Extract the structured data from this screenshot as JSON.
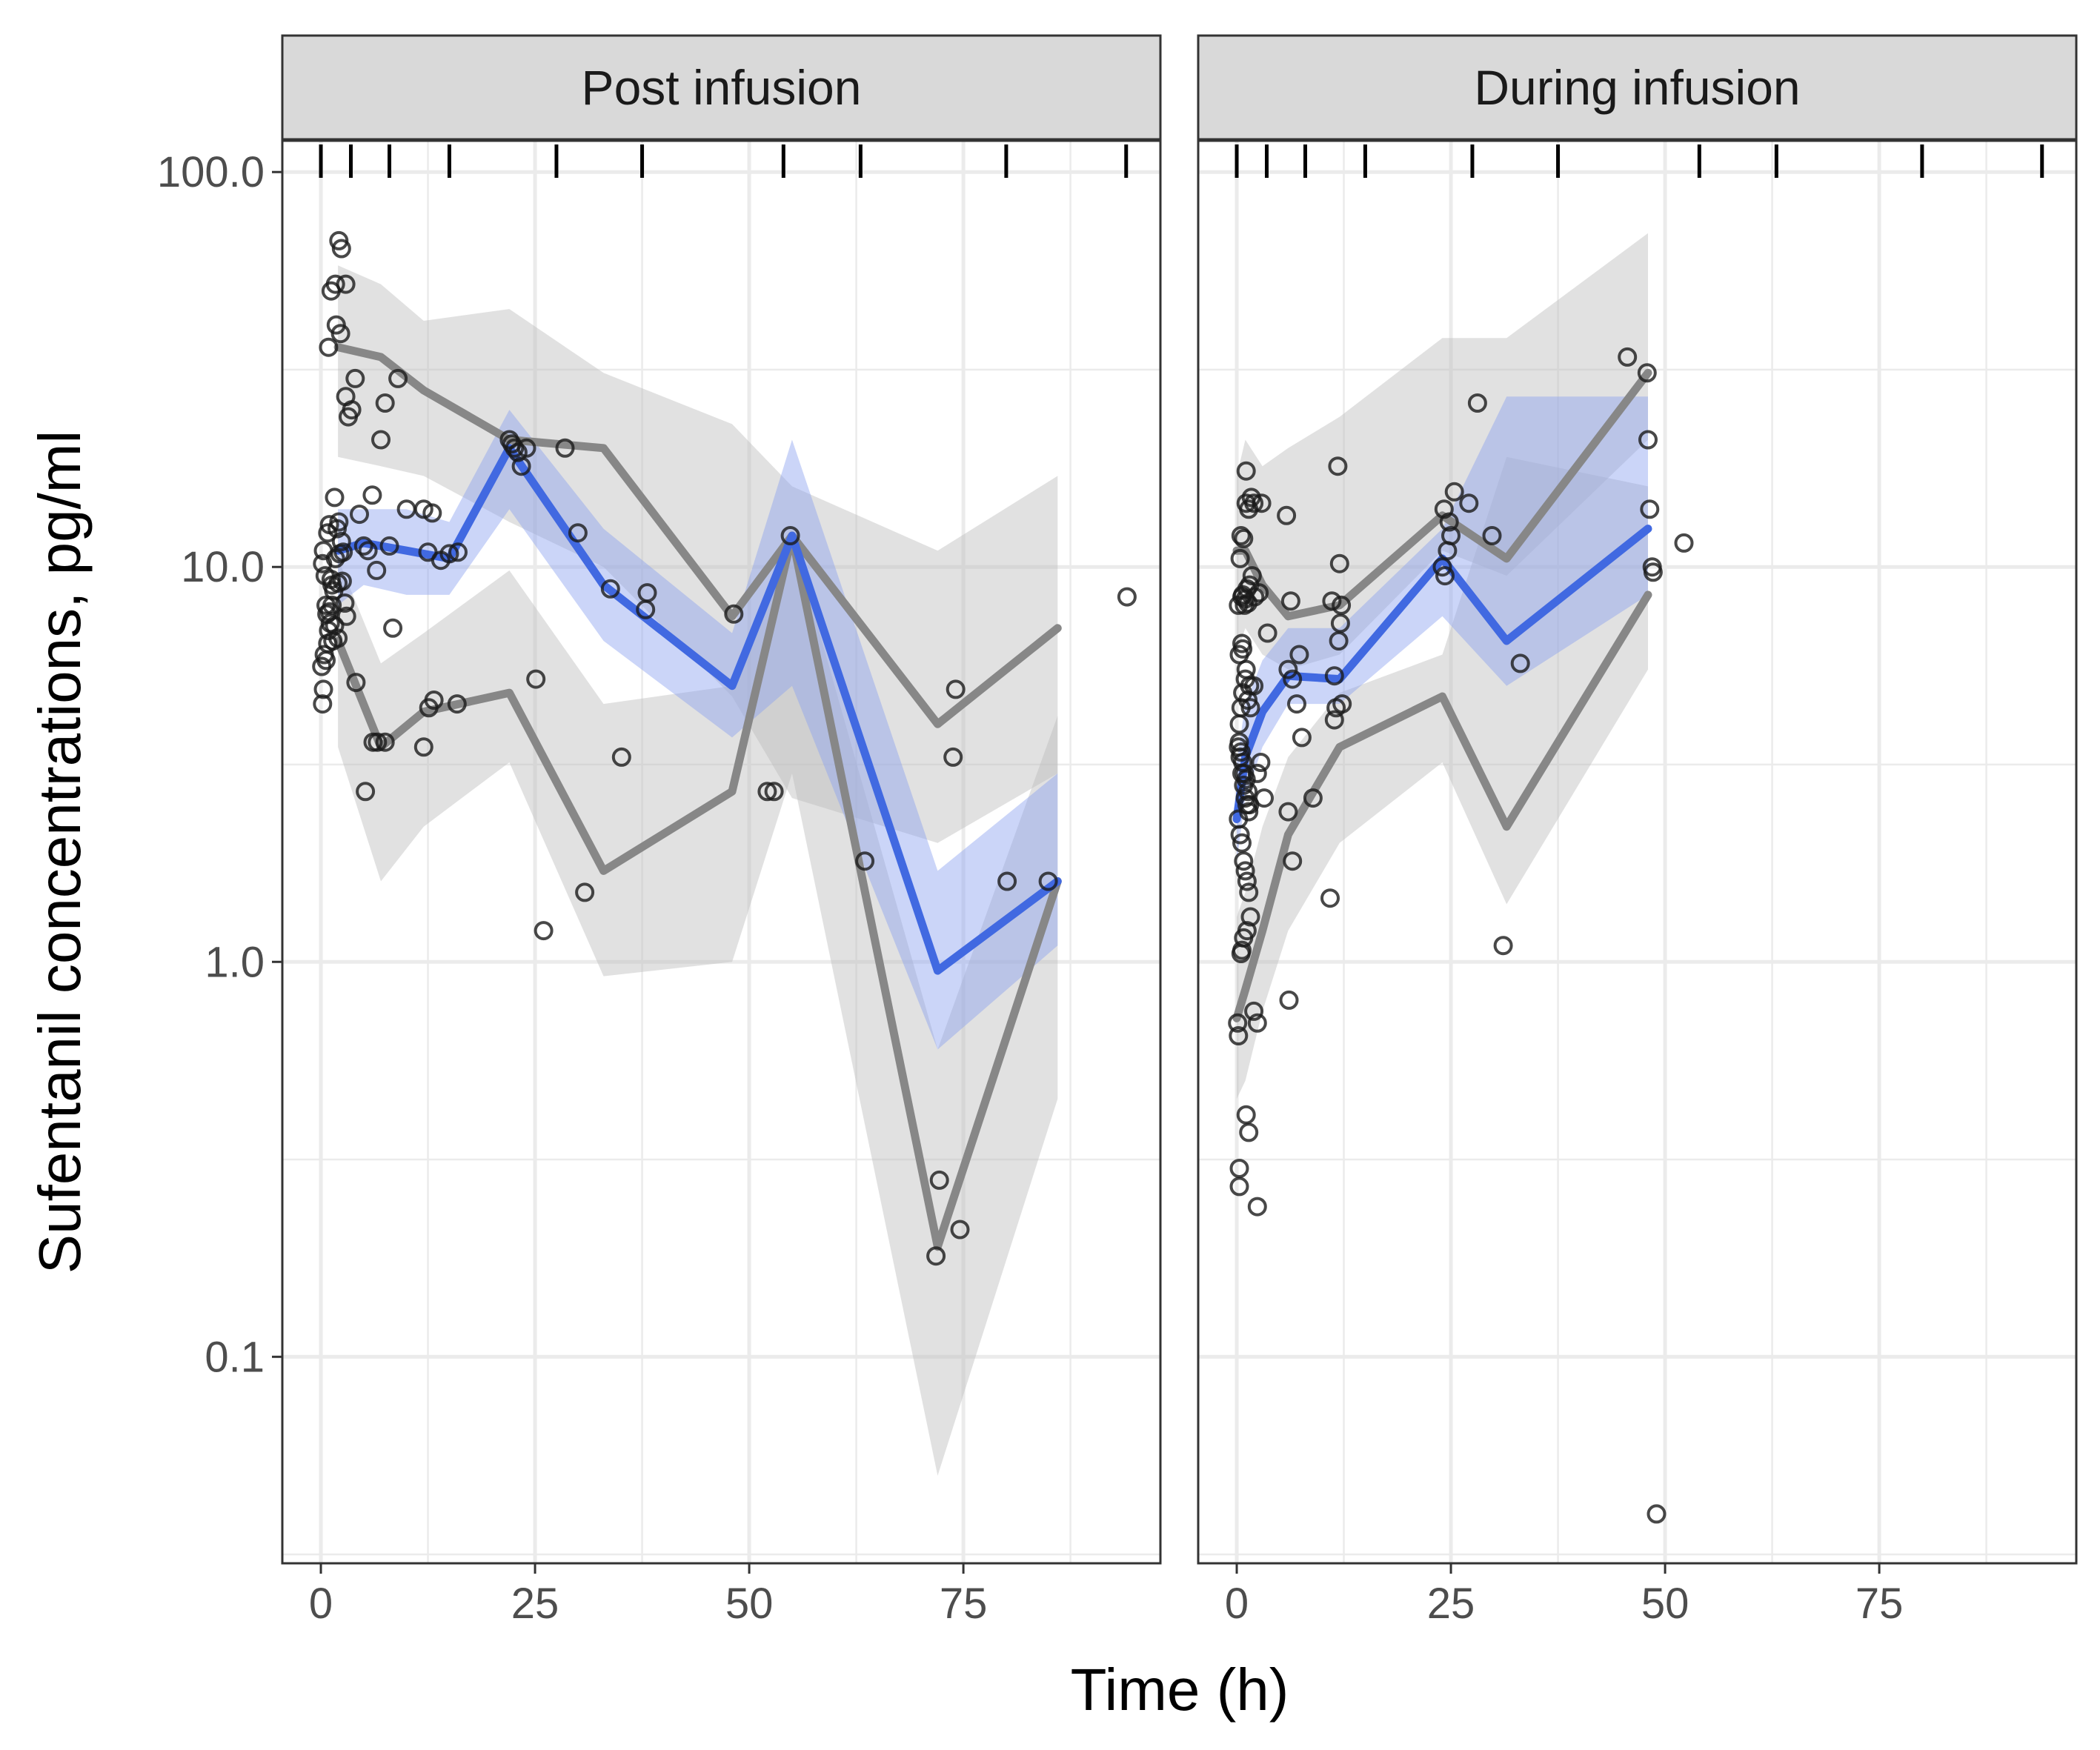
{
  "chart_data": {
    "type": "line",
    "xlabel": "Time (h)",
    "ylabel": "Sufentanil concentrations, pg/ml",
    "x_ticks": [
      "0",
      "25",
      "50",
      "75"
    ],
    "x_tick_values": [
      0,
      25,
      50,
      75
    ],
    "y_ticks": [
      "0.1",
      "1.0",
      "10.0",
      "100.0"
    ],
    "y_tick_values": [
      0.1,
      1,
      10,
      100
    ],
    "y_scale": "log10",
    "xlim": [
      -4.5,
      98
    ],
    "ylim": [
      0.03,
      120
    ],
    "grid": true,
    "rug_bins": [
      0,
      3.5,
      8,
      15,
      27.5,
      37.5,
      54,
      63,
      80,
      94
    ],
    "colors": {
      "median": "#4169E1",
      "ci_outer": "#bdbdbd",
      "ci_median": "#8ca2f0",
      "percentile_lines": "#878787",
      "points": "#1a1a1a",
      "strip_bg": "#d9d9d9",
      "grid": "#ebebeb"
    },
    "panels": [
      {
        "title": "Post infusion",
        "observed": {
          "x": [
            0.2,
            0.3,
            0.5,
            0.6,
            0.8,
            1.0,
            1.1,
            1.3,
            1.5,
            1.7,
            2.0,
            2.2,
            2.5,
            2.8,
            3.0,
            0.4,
            0.7,
            0.9,
            1.2,
            1.4,
            1.6,
            1.9,
            2.1,
            2.4,
            2.6,
            2.9,
            3.2,
            3.6,
            4.0,
            4.5,
            5.0,
            5.5,
            6.0,
            6.5,
            7.0,
            7.5,
            8.0,
            9.0,
            10.0,
            12.0,
            12.5,
            13.0,
            14.0,
            15.0,
            16.0,
            0.1,
            0.2,
            0.3,
            0.6,
            0.8,
            1.0,
            1.3,
            1.6,
            2.0,
            4.1,
            5.2,
            6.1,
            6.6,
            7.5,
            8.4,
            12.0,
            12.6,
            13.2,
            15.9,
            22.0,
            22.3,
            22.6,
            23.0,
            23.4,
            24.0,
            25.1,
            26.0,
            28.5,
            30.0,
            30.8,
            33.8,
            35.1,
            37.9,
            38.1,
            48.2,
            52.1,
            52.9,
            54.8,
            63.5,
            71.8,
            72.2,
            73.8,
            74.1,
            74.6,
            80.1,
            84.9,
            94.1,
            2.1,
            2.4,
            1.7,
            2.9,
            1.2,
            1.8,
            2.3,
            0.9
          ],
          "y": [
            10.2,
            11.0,
            9.5,
            8.0,
            12.2,
            12.8,
            7.2,
            9.0,
            8.7,
            10.5,
            9.1,
            10.8,
            9.2,
            8.1,
            7.5,
            6.0,
            7.6,
            6.9,
            9.3,
            6.5,
            15.0,
            12.5,
            13.0,
            11.6,
            10.9,
            27.0,
            24.0,
            25.0,
            30.0,
            13.6,
            11.3,
            11.0,
            15.2,
            9.8,
            21.0,
            26.0,
            11.3,
            30.0,
            14.0,
            14.0,
            10.9,
            13.7,
            10.4,
            10.8,
            10.9,
            5.6,
            4.5,
            4.9,
            5.8,
            6.4,
            7.7,
            8.0,
            7.1,
            6.6,
            5.1,
            2.7,
            3.6,
            3.6,
            3.6,
            7.0,
            3.5,
            4.4,
            4.6,
            4.5,
            21.0,
            20.5,
            20.0,
            19.5,
            18.0,
            20.0,
            5.2,
            1.2,
            20.0,
            12.2,
            1.5,
            8.8,
            3.3,
            7.8,
            8.6,
            7.6,
            2.7,
            2.7,
            12.0,
            1.8,
            0.18,
            0.28,
            3.3,
            4.9,
            0.21,
            1.6,
            1.6,
            8.4,
            67.0,
            64.0,
            52.0,
            52.0,
            50.0,
            41.0,
            39.0,
            36.0
          ],
          "median": {
            "x": [
              2,
              5,
              10,
              15,
              22,
              33,
              48,
              55,
              72,
              86
            ],
            "y": [
              11,
              11.5,
              11,
              10.5,
              20,
              9,
              5,
              12,
              0.95,
              1.6
            ]
          },
          "p5": {
            "x": [
              2,
              7,
              12,
              22,
              33,
              48,
              55,
              72,
              86
            ],
            "y": [
              6.5,
              3.5,
              4.3,
              4.8,
              1.7,
              2.7,
              12,
              0.19,
              1.6
            ]
          },
          "p95": {
            "x": [
              2,
              7,
              12,
              22,
              33,
              48,
              55,
              72,
              86
            ],
            "y": [
              36,
              34,
              28,
              21,
              20,
              7.5,
              12,
              4,
              7
            ]
          },
          "ci_median": {
            "x": [
              2,
              5,
              10,
              15,
              22,
              33,
              48,
              55,
              72,
              86
            ],
            "lo": [
              8,
              9,
              8.5,
              8.5,
              14,
              6.5,
              3.7,
              5,
              0.6,
              1.1
            ],
            "hi": [
              14,
              14,
              14,
              13,
              25,
              12.5,
              6.8,
              21,
              1.7,
              3
            ]
          },
          "ci_p5": {
            "x": [
              2,
              7,
              12,
              22,
              33,
              48,
              55,
              72,
              86
            ],
            "lo": [
              3.5,
              1.6,
              2.2,
              3.2,
              0.92,
              1,
              3,
              0.05,
              0.45
            ],
            "hi": [
              10.5,
              5.7,
              6.8,
              9.8,
              4.5,
              5,
              12,
              0.6,
              4.2
            ]
          },
          "ci_p95": {
            "x": [
              2,
              7,
              12,
              22,
              33,
              48,
              55,
              72,
              86
            ],
            "lo": [
              19,
              18,
              17,
              13,
              10,
              4.7,
              2.6,
              2,
              3
            ],
            "hi": [
              58,
              52,
              42,
              45,
              31,
              23,
              16,
              11,
              17
            ]
          }
        }
      },
      {
        "title": "During infusion",
        "observed": {
          "x": [
            0.2,
            0.4,
            0.6,
            0.8,
            1.0,
            1.2,
            1.4,
            0.3,
            0.5,
            0.7,
            0.9,
            1.1,
            1.3,
            1.5,
            0.2,
            0.4,
            0.6,
            0.8,
            1.0,
            1.2,
            1.4,
            0.3,
            0.5,
            0.7,
            1.0,
            1.3,
            1.6,
            2.0,
            2.4,
            2.8,
            3.2,
            0.5,
            0.8,
            1.1,
            1.4,
            1.7,
            2.0,
            0.3,
            0.6,
            0.9,
            1.2,
            1.5,
            1.8,
            0.4,
            0.7,
            1.0,
            1.3,
            2.1,
            2.6,
            1.1,
            2.9,
            3.6,
            6.0,
            6.5,
            7.0,
            7.3,
            5.8,
            6.3,
            8.9,
            6.1,
            6.5,
            7.6,
            6.0,
            10.9,
            11.4,
            11.6,
            11.9,
            12.1,
            12.2,
            11.1,
            11.8,
            12.0,
            12.3,
            11.4,
            0.1,
            0.2,
            0.3,
            0.3,
            1.1,
            1.4,
            2.4,
            24.0,
            24.3,
            24.6,
            25.0,
            25.4,
            24.2,
            24.8,
            27.1,
            28.1,
            29.8,
            31.1,
            33.1,
            45.6,
            47.9,
            48.0,
            48.2,
            48.5,
            48.6,
            52.2,
            49.0,
            0.5,
            0.6,
            0.8,
            1.2,
            1.6,
            2.0,
            2.4,
            0.7,
            1.1,
            1.5,
            0.2,
            0.6
          ],
          "y": [
            3.5,
            3.3,
            3.0,
            2.8,
            2.6,
            2.5,
            2.4,
            3.6,
            3.4,
            3.2,
            3.0,
            2.9,
            2.7,
            2.5,
            2.3,
            2.1,
            2.0,
            1.8,
            1.7,
            1.6,
            1.5,
            4.0,
            4.4,
            4.8,
            5.2,
            4.6,
            4.4,
            5.0,
            3.0,
            3.2,
            2.6,
            12.0,
            11.8,
            14.5,
            14.0,
            15.0,
            14.5,
            6.0,
            6.4,
            8.0,
            8.8,
            9.0,
            9.5,
            10.5,
            8.5,
            8.3,
            8.1,
            8.4,
            8.6,
            17.5,
            14.5,
            6.8,
            5.5,
            5.2,
            4.5,
            6.0,
            13.5,
            8.2,
            2.6,
            0.8,
            1.8,
            3.7,
            2.4,
            1.45,
            4.1,
            4.4,
            6.5,
            7.2,
            8.0,
            8.2,
            18.0,
            10.2,
            4.5,
            5.3,
            0.7,
            0.65,
            0.3,
            0.27,
            0.41,
            0.37,
            0.24,
            10.0,
            9.5,
            11.0,
            12.0,
            15.5,
            14.0,
            13.0,
            14.5,
            26.0,
            12.0,
            1.1,
            5.7,
            34.0,
            31.0,
            21.0,
            14.0,
            10.0,
            9.7,
            11.5,
            0.04,
            1.05,
            1.07,
            1.15,
            1.2,
            1.3,
            0.75,
            0.7,
            6.2,
            5.5,
            5.0,
            8.0,
            8.4
          ],
          "median": {
            "x": [
              0,
              1,
              3,
              6,
              12,
              24,
              31.5,
              48
            ],
            "y": [
              2.3,
              3.3,
              4.3,
              5.3,
              5.2,
              10.5,
              6.5,
              12.5
            ]
          },
          "p5": {
            "x": [
              0,
              1,
              3,
              6,
              12,
              24,
              31.5,
              48
            ],
            "y": [
              0.72,
              0.85,
              1.2,
              2.1,
              3.5,
              4.7,
              2.2,
              8.5
            ]
          },
          "p95": {
            "x": [
              0,
              1,
              3,
              6,
              12,
              24,
              31.5,
              48
            ],
            "y": [
              11,
              11,
              9,
              7.5,
              8,
              13.5,
              10.5,
              31
            ]
          },
          "ci_median": {
            "x": [
              0,
              1,
              3,
              6,
              12,
              24,
              31.5,
              48
            ],
            "lo": [
              1.8,
              2.6,
              3.5,
              4.5,
              4.5,
              7.5,
              5,
              8.5
            ],
            "hi": [
              3.2,
              4.5,
              5.8,
              7,
              7,
              12.5,
              27,
              27
            ]
          },
          "ci_p5": {
            "x": [
              0,
              1,
              3,
              6,
              12,
              24,
              31.5,
              48
            ],
            "lo": [
              0.45,
              0.5,
              0.75,
              1.2,
              2,
              3.2,
              1.4,
              5.5
            ],
            "hi": [
              1.3,
              1.5,
              2.2,
              3.3,
              4.8,
              6,
              19,
              16
            ]
          },
          "ci_p95": {
            "x": [
              0,
              1,
              3,
              6,
              12,
              24,
              31.5,
              48
            ],
            "lo": [
              6,
              7,
              6,
              5.5,
              6,
              11,
              9.5,
              21
            ],
            "hi": [
              17,
              21,
              18,
              20,
              24,
              38,
              38,
              70
            ]
          }
        }
      }
    ]
  }
}
